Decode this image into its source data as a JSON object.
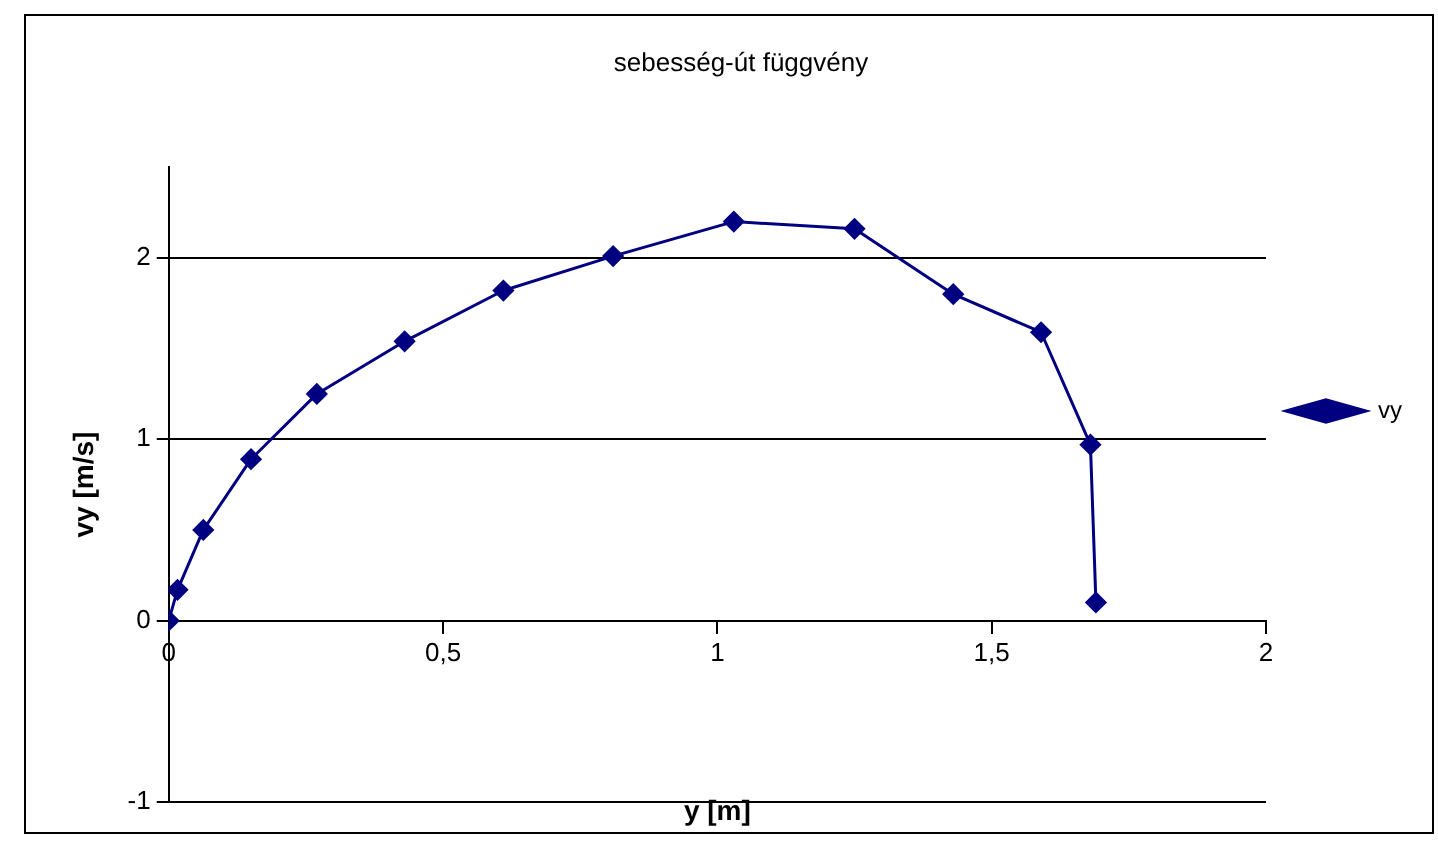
{
  "chart_data": {
    "type": "line",
    "title": "sebesség-út függvény",
    "xlabel": "y [m]",
    "ylabel": "vy [m/s]",
    "x": [
      0,
      0.016,
      0.063,
      0.15,
      0.27,
      0.43,
      0.61,
      0.81,
      1.03,
      1.25,
      1.43,
      1.59,
      1.68,
      1.69
    ],
    "series": [
      {
        "name": "vy",
        "color": "#000080",
        "values": [
          0,
          0.17,
          0.5,
          0.89,
          1.25,
          1.54,
          1.82,
          2.01,
          2.2,
          2.16,
          1.8,
          1.59,
          0.97,
          0.1
        ]
      }
    ],
    "xlim": [
      0,
      2
    ],
    "xticks": [
      0,
      {
        "value": 0.5,
        "label": "0,5"
      },
      1,
      {
        "value": 1.5,
        "label": "1,5"
      },
      2
    ],
    "ylim": [
      -1,
      2.5
    ],
    "yticks": [
      -1,
      0,
      1,
      2
    ],
    "grid": "y",
    "legend": "right",
    "marker": "diamond"
  }
}
